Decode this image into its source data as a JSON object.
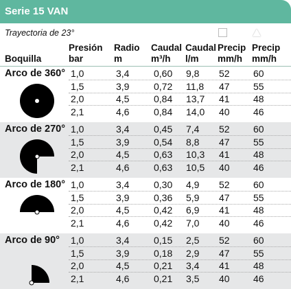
{
  "title": "Serie 15 VAN",
  "trajectory": "Trayectoria de 23°",
  "header_icons": {
    "precip_square": "white-square-icon",
    "precip_triangle": "white-triangle-icon"
  },
  "columns": {
    "boquilla": "Boquilla",
    "presion": [
      "Presión",
      "bar"
    ],
    "radio": [
      "Radio",
      "m"
    ],
    "caudal_m3h": [
      "Caudal",
      "m³/h"
    ],
    "caudal_lm": [
      "Caudal",
      "l/m"
    ],
    "precip_sq": [
      "Precip",
      "mm/h"
    ],
    "precip_tri": [
      "Precip",
      "mm/h"
    ]
  },
  "sections": [
    {
      "label": "Arco de 360°",
      "icon": "arc-360-icon",
      "rows": [
        [
          "1,0",
          "3,4",
          "0,60",
          "9,8",
          "52",
          "60"
        ],
        [
          "1,5",
          "3,9",
          "0,72",
          "11,8",
          "47",
          "55"
        ],
        [
          "2,0",
          "4,5",
          "0,84",
          "13,7",
          "41",
          "48"
        ],
        [
          "2,1",
          "4,6",
          "0,84",
          "14,0",
          "40",
          "46"
        ]
      ]
    },
    {
      "label": "Arco de 270°",
      "icon": "arc-270-icon",
      "rows": [
        [
          "1,0",
          "3,4",
          "0,45",
          "7,4",
          "52",
          "60"
        ],
        [
          "1,5",
          "3,9",
          "0,54",
          "8,8",
          "47",
          "55"
        ],
        [
          "2,0",
          "4,5",
          "0,63",
          "10,3",
          "41",
          "48"
        ],
        [
          "2,1",
          "4,6",
          "0,63",
          "10,5",
          "40",
          "46"
        ]
      ]
    },
    {
      "label": "Arco de 180°",
      "icon": "arc-180-icon",
      "rows": [
        [
          "1,0",
          "3,4",
          "0,30",
          "4,9",
          "52",
          "60"
        ],
        [
          "1,5",
          "3,9",
          "0,36",
          "5,9",
          "47",
          "55"
        ],
        [
          "2,0",
          "4,5",
          "0,42",
          "6,9",
          "41",
          "48"
        ],
        [
          "2,1",
          "4,6",
          "0,42",
          "7,0",
          "40",
          "46"
        ]
      ]
    },
    {
      "label": "Arco de 90°",
      "icon": "arc-90-icon",
      "rows": [
        [
          "1,0",
          "3,4",
          "0,15",
          "2,5",
          "52",
          "60"
        ],
        [
          "1,5",
          "3,9",
          "0,18",
          "2,9",
          "47",
          "55"
        ],
        [
          "2,0",
          "4,5",
          "0,21",
          "3,4",
          "41",
          "48"
        ],
        [
          "2,1",
          "4,6",
          "0,21",
          "3,5",
          "40",
          "46"
        ]
      ]
    }
  ]
}
